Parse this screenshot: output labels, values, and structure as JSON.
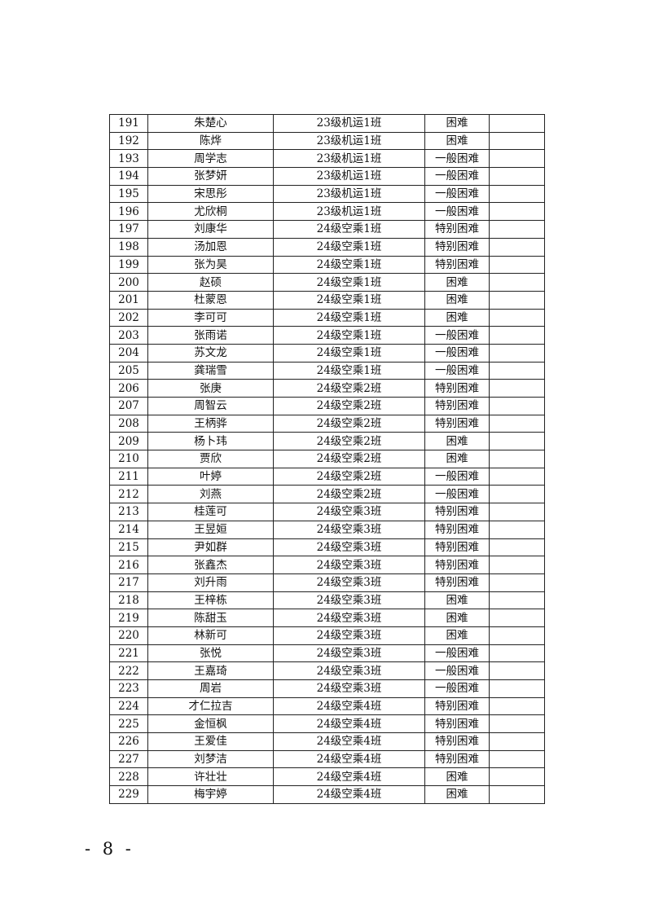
{
  "table": {
    "rows": [
      [
        "191",
        "朱楚心",
        "23级机运1班",
        "困难",
        ""
      ],
      [
        "192",
        "陈烨",
        "23级机运1班",
        "困难",
        ""
      ],
      [
        "193",
        "周学志",
        "23级机运1班",
        "一般困难",
        ""
      ],
      [
        "194",
        "张梦妍",
        "23级机运1班",
        "一般困难",
        ""
      ],
      [
        "195",
        "宋思彤",
        "23级机运1班",
        "一般困难",
        ""
      ],
      [
        "196",
        "尤欣桐",
        "23级机运1班",
        "一般困难",
        ""
      ],
      [
        "197",
        "刘康华",
        "24级空乘1班",
        "特别困难",
        ""
      ],
      [
        "198",
        "汤加恩",
        "24级空乘1班",
        "特别困难",
        ""
      ],
      [
        "199",
        "张为昊",
        "24级空乘1班",
        "特别困难",
        ""
      ],
      [
        "200",
        "赵硕",
        "24级空乘1班",
        "困难",
        ""
      ],
      [
        "201",
        "杜蒙恩",
        "24级空乘1班",
        "困难",
        ""
      ],
      [
        "202",
        "李可可",
        "24级空乘1班",
        "困难",
        ""
      ],
      [
        "203",
        "张雨诺",
        "24级空乘1班",
        "一般困难",
        ""
      ],
      [
        "204",
        "苏文龙",
        "24级空乘1班",
        "一般困难",
        ""
      ],
      [
        "205",
        "龚瑞雪",
        "24级空乘1班",
        "一般困难",
        ""
      ],
      [
        "206",
        "张庚",
        "24级空乘2班",
        "特别困难",
        ""
      ],
      [
        "207",
        "周智云",
        "24级空乘2班",
        "特别困难",
        ""
      ],
      [
        "208",
        "王柄骅",
        "24级空乘2班",
        "特别困难",
        ""
      ],
      [
        "209",
        "杨卜玮",
        "24级空乘2班",
        "困难",
        ""
      ],
      [
        "210",
        "贾欣",
        "24级空乘2班",
        "困难",
        ""
      ],
      [
        "211",
        "叶婷",
        "24级空乘2班",
        "一般困难",
        ""
      ],
      [
        "212",
        "刘燕",
        "24级空乘2班",
        "一般困难",
        ""
      ],
      [
        "213",
        "桂莲可",
        "24级空乘3班",
        "特别困难",
        ""
      ],
      [
        "214",
        "王昱姮",
        "24级空乘3班",
        "特别困难",
        ""
      ],
      [
        "215",
        "尹如群",
        "24级空乘3班",
        "特别困难",
        ""
      ],
      [
        "216",
        "张鑫杰",
        "24级空乘3班",
        "特别困难",
        ""
      ],
      [
        "217",
        "刘升雨",
        "24级空乘3班",
        "特别困难",
        ""
      ],
      [
        "218",
        "王梓栋",
        "24级空乘3班",
        "困难",
        ""
      ],
      [
        "219",
        "陈甜玉",
        "24级空乘3班",
        "困难",
        ""
      ],
      [
        "220",
        "林新可",
        "24级空乘3班",
        "困难",
        ""
      ],
      [
        "221",
        "张悦",
        "24级空乘3班",
        "一般困难",
        ""
      ],
      [
        "222",
        "王嘉琦",
        "24级空乘3班",
        "一般困难",
        ""
      ],
      [
        "223",
        "周岩",
        "24级空乘3班",
        "一般困难",
        ""
      ],
      [
        "224",
        "才仁拉吉",
        "24级空乘4班",
        "特别困难",
        ""
      ],
      [
        "225",
        "金恒枫",
        "24级空乘4班",
        "特别困难",
        ""
      ],
      [
        "226",
        "王爱佳",
        "24级空乘4班",
        "特别困难",
        ""
      ],
      [
        "227",
        "刘梦洁",
        "24级空乘4班",
        "特别困难",
        ""
      ],
      [
        "228",
        "许壮壮",
        "24级空乘4班",
        "困难",
        ""
      ],
      [
        "229",
        "梅宇婷",
        "24级空乘4班",
        "困难",
        ""
      ]
    ]
  },
  "footer": {
    "page_number": "- 8 -"
  }
}
